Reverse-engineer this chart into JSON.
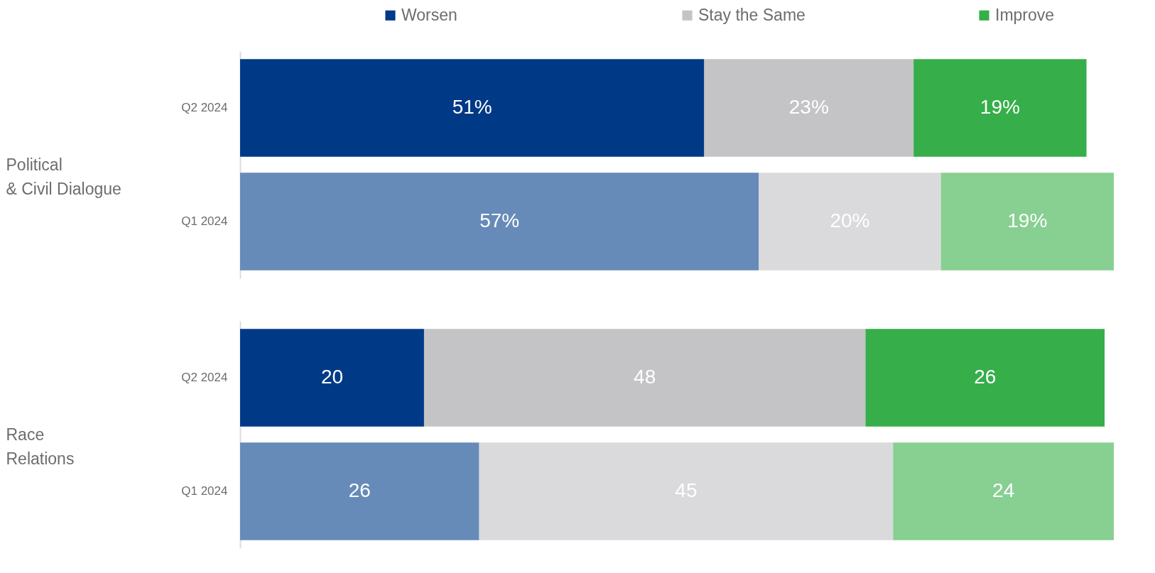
{
  "chart_data": [
    {
      "type": "bar",
      "orientation": "horizontal",
      "stacked": true,
      "ylabel": "Political & Civil Dialogue",
      "legend": "top",
      "categories": [
        "Q2 2024",
        "Q1 2024"
      ],
      "series": [
        {
          "name": "Worsen",
          "color": "#003a87",
          "colors": [
            "#003a87",
            "#678bb8"
          ],
          "values": [
            51,
            57
          ],
          "value_labels": [
            "51%",
            "57%"
          ]
        },
        {
          "name": "Stay the Same",
          "color": "#c4c4c6",
          "colors": [
            "#c4c4c6",
            "#dadadc"
          ],
          "values": [
            23,
            20
          ],
          "value_labels": [
            "23%",
            "20%"
          ]
        },
        {
          "name": "Improve",
          "color": "#36ae4a",
          "colors": [
            "#36ae4a",
            "#88cf92"
          ],
          "values": [
            19,
            19
          ],
          "value_labels": [
            "19%",
            "19%"
          ]
        }
      ]
    },
    {
      "type": "bar",
      "orientation": "horizontal",
      "stacked": true,
      "ylabel": "Race Relations",
      "data_labels": true,
      "categories": [
        "Q2 2024",
        "Q1 2024"
      ],
      "series": [
        {
          "name": "Worsen",
          "color": "#003a87",
          "colors": [
            "#003a87",
            "#678bb8"
          ],
          "values": [
            20,
            26
          ]
        },
        {
          "name": "Stay the Same",
          "color": "#c4c4c6",
          "colors": [
            "#c4c4c6",
            "#dadadc"
          ],
          "values": [
            48,
            45
          ]
        },
        {
          "name": "Improve",
          "color": "#36ae4a",
          "colors": [
            "#36ae4a",
            "#88cf92"
          ],
          "values": [
            26,
            24
          ]
        }
      ]
    }
  ]
}
